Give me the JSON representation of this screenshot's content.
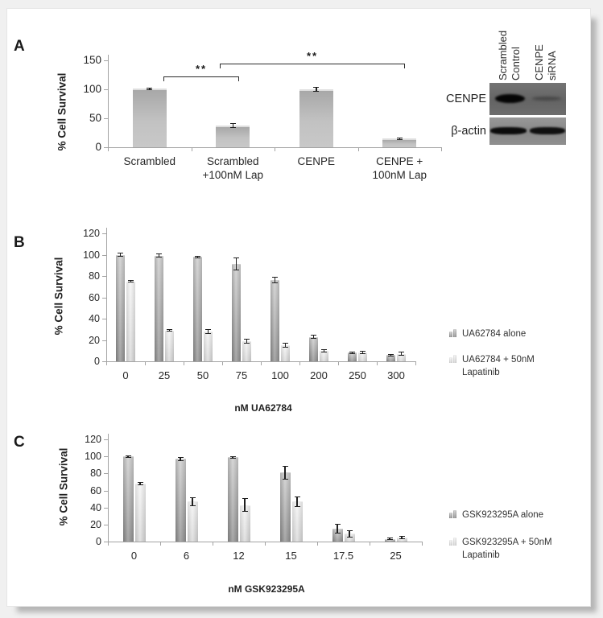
{
  "figure": {
    "panel_a_label": "A",
    "panel_b_label": "B",
    "panel_c_label": "C"
  },
  "western_blot": {
    "lane_labels": [
      "Scrambled\nControl",
      "CENPE\nsiRNA"
    ],
    "row_labels": [
      "CENPE",
      "β-actin"
    ]
  },
  "chart_data": [
    {
      "panel": "A",
      "type": "bar",
      "ylabel": "% Cell Survival",
      "xlabel": "",
      "ylim": [
        0,
        150
      ],
      "yticks": [
        0,
        50,
        100,
        150
      ],
      "grid": false,
      "legend_position": "none",
      "categories": [
        "Scrambled",
        "Scrambled\n+100nM Lap",
        "CENPE",
        "CENPE +\n100nM Lap"
      ],
      "series": [
        {
          "name": "% Cell Survival",
          "values": [
            101,
            38,
            100,
            15
          ],
          "errors": [
            1.5,
            4,
            4,
            1.5
          ]
        }
      ],
      "significance": [
        {
          "between": [
            "Scrambled",
            "Scrambled +100nM Lap"
          ],
          "label": "**"
        },
        {
          "between": [
            "Scrambled +100nM Lap",
            "CENPE + 100nM Lap"
          ],
          "label": "**"
        }
      ]
    },
    {
      "panel": "B",
      "type": "bar",
      "ylabel": "% Cell Survival",
      "xlabel": "nM UA62784",
      "ylim": [
        0,
        120
      ],
      "yticks": [
        0,
        20,
        40,
        60,
        80,
        100,
        120
      ],
      "grid": false,
      "legend_position": "right",
      "categories": [
        "0",
        "25",
        "50",
        "75",
        "100",
        "200",
        "250",
        "300"
      ],
      "series": [
        {
          "name": "UA62784 alone",
          "values": [
            100,
            99,
            98,
            91,
            76,
            23,
            8,
            6
          ],
          "errors": [
            2,
            2,
            1,
            6,
            3,
            2,
            1,
            1
          ]
        },
        {
          "name": "UA62784 + 50nM Lapatinib",
          "values": [
            75,
            29,
            28,
            19,
            15,
            10,
            8,
            7
          ],
          "errors": [
            1,
            1,
            2,
            2.5,
            2,
            1.5,
            1.5,
            2
          ]
        }
      ]
    },
    {
      "panel": "C",
      "type": "bar",
      "ylabel": "% Cell Survival",
      "xlabel": "nM GSK923295A",
      "ylim": [
        0,
        120
      ],
      "yticks": [
        0,
        20,
        40,
        60,
        80,
        100,
        120
      ],
      "grid": false,
      "legend_position": "right",
      "categories": [
        "0",
        "6",
        "12",
        "15",
        "17.5",
        "25"
      ],
      "series": [
        {
          "name": "GSK923295A alone",
          "values": [
            100,
            97,
            99,
            81,
            15,
            3
          ],
          "errors": [
            1,
            2.5,
            1,
            8,
            6,
            1
          ]
        },
        {
          "name": "GSK923295A + 50nM Lapatinib",
          "values": [
            68,
            47,
            43,
            47,
            9,
            5
          ],
          "errors": [
            2,
            5,
            8,
            6,
            4,
            2
          ]
        }
      ]
    }
  ],
  "colors": {
    "series_dark": "#8f8f8f",
    "series_light": "#e0e0e0",
    "panel_a_bar": "#b5b5b5",
    "text": "#262626",
    "axis": "#a3a3a3",
    "page_bg": "#f0f0f0",
    "card_bg": "#ffffff"
  }
}
